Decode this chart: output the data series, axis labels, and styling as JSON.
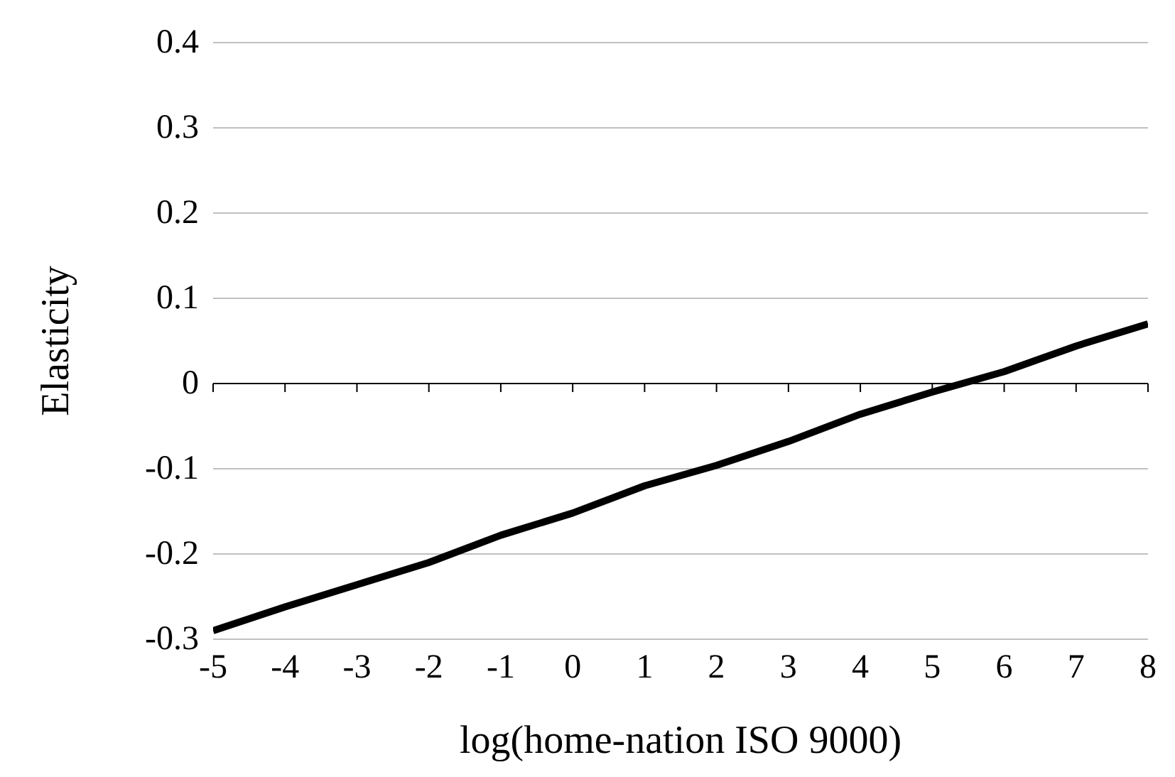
{
  "chart_data": {
    "type": "line",
    "xlabel": "log(home-nation ISO 9000)",
    "ylabel": "Elasticity",
    "x": [
      -5,
      -4,
      -3,
      -2,
      -1,
      0,
      1,
      2,
      3,
      4,
      5,
      6,
      7,
      8
    ],
    "series": [
      {
        "color": "#000000",
        "values": [
          -0.29,
          -0.262,
          -0.236,
          -0.21,
          -0.178,
          -0.152,
          -0.12,
          -0.096,
          -0.068,
          -0.036,
          -0.01,
          0.014,
          0.044,
          0.07
        ]
      }
    ],
    "xlim": [
      -5,
      8
    ],
    "xticks": [
      -5,
      -4,
      -3,
      -2,
      -1,
      0,
      1,
      2,
      3,
      4,
      5,
      6,
      7,
      8
    ],
    "ylim": [
      -0.3,
      0.4
    ],
    "yticks": [
      -0.3,
      -0.2,
      -0.1,
      0,
      0.1,
      0.2,
      0.3,
      0.4
    ],
    "grid": "y",
    "legend": false,
    "marker": "none",
    "line_style": "solid"
  }
}
